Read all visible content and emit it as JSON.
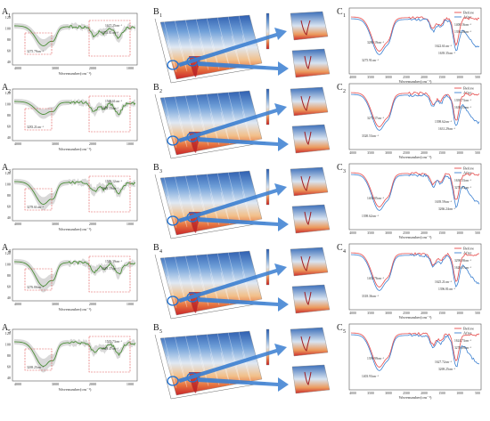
{
  "rows": [
    {
      "a_label": "A",
      "a_sub": "1",
      "b_label": "B",
      "b_sub": "1",
      "c_label": "C",
      "c_sub": "1",
      "a_peaks": [
        "3275.79cm⁻¹",
        "1617.25cm⁻¹",
        "1053.61cm⁻¹"
      ],
      "c_peaks": [
        "3280.19cm⁻¹",
        "3275.91cm⁻¹",
        "1400.16cm⁻¹",
        "1622.61cm⁻¹",
        "1394.28cm⁻¹",
        "1639.35cm⁻¹"
      ]
    },
    {
      "a_label": "A",
      "a_sub": "2",
      "b_label": "B",
      "b_sub": "2",
      "c_label": "C",
      "c_sub": "2",
      "a_peaks": [
        "3283.21cm⁻¹",
        "1560.61cm⁻¹",
        "1639.55cm⁻¹"
      ],
      "c_peaks": [
        "3275.17cm⁻¹",
        "3320.53cm⁻¹",
        "1395.73cm⁻¹",
        "1398.62cm⁻¹",
        "1639.55cm⁻¹",
        "1631.29cm⁻¹"
      ]
    },
    {
      "a_label": "A",
      "a_sub": "3",
      "b_label": "B",
      "b_sub": "3",
      "c_label": "C",
      "c_sub": "3",
      "a_peaks": [
        "3278.61cm⁻¹",
        "1559.12cm⁻¹",
        "1629.59cm⁻¹"
      ],
      "c_peaks": [
        "1404.05cm⁻¹",
        "1398.62cm⁻¹",
        "1630.33cm⁻¹",
        "1639.59cm⁻¹",
        "3278.63cm⁻¹",
        "3266.24cm⁻¹"
      ]
    },
    {
      "a_label": "A",
      "a_sub": "4",
      "b_label": "B",
      "b_sub": "4",
      "c_label": "C",
      "c_sub": "4",
      "a_peaks": [
        "3276.80cm⁻¹",
        "1526.39cm⁻¹",
        "1629.57cm⁻¹"
      ],
      "c_peaks": [
        "1402.76cm⁻¹",
        "3318.36cm⁻¹",
        "3290.08cm⁻¹",
        "1625.21cm⁻¹",
        "1629.07cm⁻¹",
        "1396.81cm⁻¹"
      ]
    },
    {
      "a_label": "A",
      "a_sub": "5",
      "b_label": "B",
      "b_sub": "5",
      "c_label": "C",
      "c_sub": "5",
      "a_peaks": [
        "3269.25cm⁻¹",
        "1535.73cm⁻¹",
        "1629.47cm⁻¹"
      ],
      "c_peaks": [
        "1399.99cm⁻¹",
        "1403.93cm⁻¹",
        "1624.73cm⁻¹",
        "1627.72cm⁻¹",
        "3279.69cm⁻¹",
        "3269.25cm⁻¹"
      ]
    }
  ],
  "a_axis": {
    "xlabel": "Wavenumber(cm⁻¹)",
    "yticks": [
      "120",
      "100",
      "80",
      "60",
      "40"
    ],
    "xticks": [
      "4000",
      "3000",
      "2000",
      "1000"
    ]
  },
  "c_axis": {
    "xlabel": "Wavenumber(cm⁻¹)",
    "xticks": [
      "4000",
      "3500",
      "3000",
      "2500",
      "2000",
      "1500",
      "1000",
      "500"
    ]
  },
  "legend": {
    "before": "Before",
    "after": "After"
  },
  "colors": {
    "before": "#e74c4c",
    "after": "#3a7fd0",
    "a_mean": "#4d8f3a",
    "a_band": "#b9b9b9",
    "box": "#e05252",
    "arrow": "#3b7fd1",
    "ring": "#1f6fcf"
  },
  "chart_data": [
    {
      "panel": "A",
      "type": "line",
      "xlabel": "Wavenumber(cm⁻¹)",
      "x_reversed": true,
      "xlim": [
        4000,
        500
      ],
      "ylim": [
        30,
        130
      ],
      "note": "Averaged FTIR spectra with grey range band for five samples (A1–A5)",
      "series": [
        {
          "name": "A1",
          "x": [
            4000,
            3600,
            3275,
            3000,
            2500,
            2000,
            1617,
            1400,
            1053,
            700
          ],
          "y": [
            100,
            98,
            62,
            85,
            98,
            97,
            78,
            82,
            70,
            95
          ]
        },
        {
          "name": "A2",
          "x": [
            4000,
            3600,
            3283,
            3000,
            2500,
            2000,
            1639,
            1560,
            1053,
            700
          ],
          "y": [
            108,
            104,
            78,
            92,
            104,
            103,
            90,
            92,
            88,
            100
          ]
        },
        {
          "name": "A3",
          "x": [
            4000,
            3600,
            3278,
            3000,
            2500,
            2000,
            1629,
            1559,
            1053,
            700
          ],
          "y": [
            100,
            96,
            58,
            84,
            98,
            97,
            76,
            80,
            66,
            94
          ]
        },
        {
          "name": "A4",
          "x": [
            4000,
            3600,
            3276,
            3000,
            2500,
            2000,
            1629,
            1526,
            1053,
            700
          ],
          "y": [
            102,
            96,
            56,
            82,
            98,
            96,
            74,
            76,
            62,
            92
          ]
        },
        {
          "name": "A5",
          "x": [
            4000,
            3600,
            3269,
            3000,
            2500,
            2000,
            1629,
            1535,
            1053,
            700
          ],
          "y": [
            100,
            95,
            55,
            82,
            97,
            96,
            74,
            77,
            62,
            93
          ]
        }
      ]
    },
    {
      "panel": "C",
      "type": "line",
      "xlabel": "Wavenumber(cm⁻¹)",
      "x_reversed": true,
      "xlim": [
        4000,
        500
      ],
      "note": "Before/After FTIR comparison for five samples (C1–C5)",
      "series": [
        {
          "name": "Before",
          "x": [
            4000,
            3600,
            3280,
            3000,
            2500,
            2000,
            1622,
            1400,
            1000,
            500
          ],
          "y": [
            98,
            96,
            72,
            88,
            96,
            95,
            86,
            90,
            84,
            92
          ]
        },
        {
          "name": "After",
          "x": [
            4000,
            3600,
            3275,
            3000,
            2500,
            2000,
            1639,
            1394,
            1000,
            500
          ],
          "y": [
            98,
            95,
            66,
            86,
            95,
            94,
            82,
            86,
            70,
            60
          ]
        }
      ]
    }
  ]
}
